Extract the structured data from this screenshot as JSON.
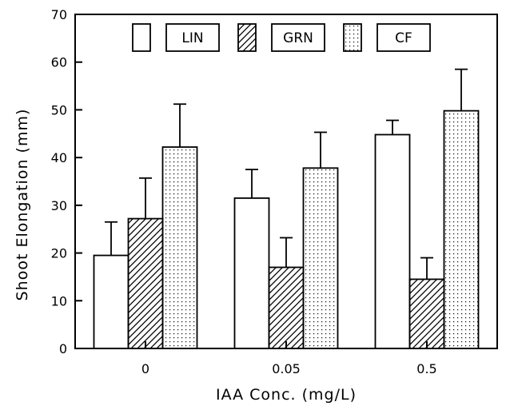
{
  "chart_data": {
    "type": "bar",
    "title": "",
    "xlabel": "IAA  Conc.  (mg/L)",
    "ylabel": "Shoot  Elongation  (mm)",
    "categories": [
      "0",
      "0.05",
      "0.5"
    ],
    "ylim": [
      0,
      70
    ],
    "yticks": [
      0,
      10,
      20,
      30,
      40,
      50,
      60,
      70
    ],
    "error_bars": "upper only",
    "legend_position": "top",
    "grid": false,
    "series": [
      {
        "name": "LIN",
        "pattern": "open",
        "values": [
          19.5,
          31.5,
          44.8
        ],
        "errors": [
          7.0,
          6.0,
          3.0
        ]
      },
      {
        "name": "GRN",
        "pattern": "diagonal-hatch",
        "values": [
          27.2,
          17.0,
          14.5
        ],
        "errors": [
          8.5,
          6.2,
          4.5
        ]
      },
      {
        "name": "CF",
        "pattern": "dotted",
        "values": [
          42.2,
          37.8,
          49.8
        ],
        "errors": [
          9.0,
          7.5,
          8.7
        ]
      }
    ]
  }
}
